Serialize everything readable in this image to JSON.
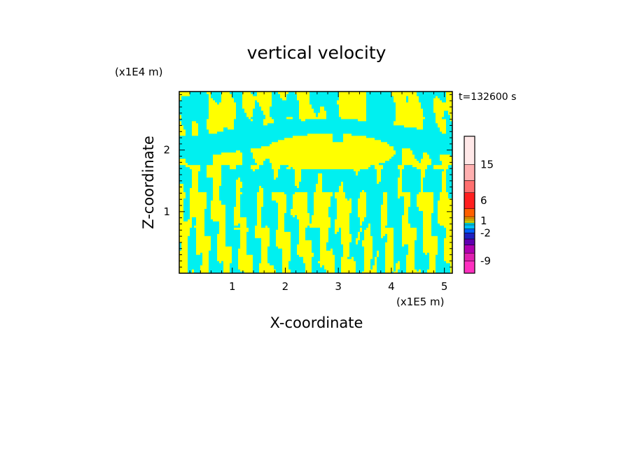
{
  "chart_data": {
    "type": "heatmap",
    "title": "vertical velocity",
    "xlabel": "X-coordinate",
    "ylabel": "Z-coordinate",
    "x_unit": "(x1E5 m)",
    "y_unit": "(x1E4 m)",
    "time_label": "t=132600 s",
    "xlim": [
      0,
      5.15
    ],
    "ylim": [
      0,
      2.95
    ],
    "x_ticks": [
      1,
      2,
      3,
      4,
      5
    ],
    "y_ticks": [
      1,
      2
    ],
    "x_tick_labels": [
      "1",
      "2",
      "3",
      "4",
      "5"
    ],
    "y_tick_labels": [
      "1",
      "2"
    ],
    "field_colors": {
      "updraft": "#ffff00",
      "downdraft": "#00f0f0"
    },
    "colorbar": {
      "levels": [
        {
          "color": "#ff30c0"
        },
        {
          "color": "#e020b0"
        },
        {
          "color": "#b000b0"
        },
        {
          "color": "#6000b0"
        },
        {
          "color": "#2020c0"
        },
        {
          "color": "#0060ff"
        },
        {
          "color": "#00c0ff"
        },
        {
          "color": "#00f0f0"
        },
        {
          "color": "#ffff00"
        },
        {
          "color": "#ffd000"
        },
        {
          "color": "#ffa000"
        },
        {
          "color": "#ff6000"
        },
        {
          "color": "#ff2020"
        },
        {
          "color": "#ff7070"
        },
        {
          "color": "#ffb0b0"
        },
        {
          "color": "#ffe8e8"
        }
      ],
      "labels": [
        {
          "text": "15",
          "value": 15
        },
        {
          "text": "6",
          "value": 6
        },
        {
          "text": "1",
          "value": 1
        },
        {
          "text": "-2",
          "value": -2
        },
        {
          "text": "-9",
          "value": -9
        }
      ]
    }
  }
}
